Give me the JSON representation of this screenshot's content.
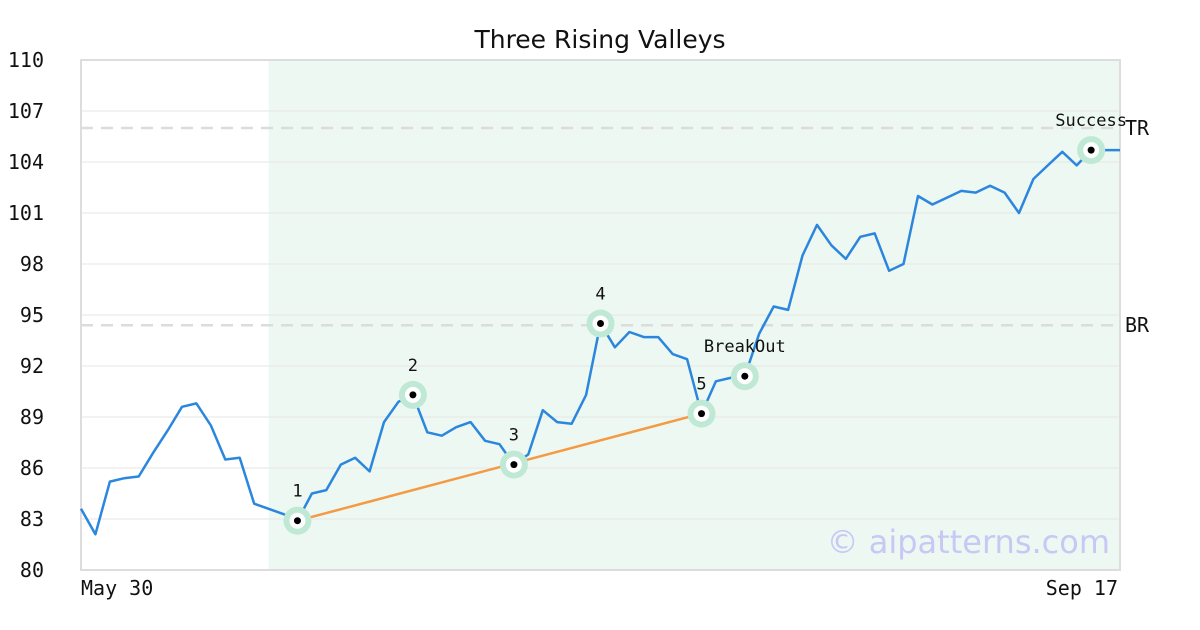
{
  "chart_data": {
    "type": "line",
    "title": "Three Rising Valleys",
    "xlabel": "",
    "ylabel": "",
    "x_tick_labels": [
      "May 30",
      "Sep 17"
    ],
    "ylim": [
      80,
      110
    ],
    "yticks": [
      80,
      83,
      86,
      89,
      92,
      95,
      98,
      101,
      104,
      107,
      110
    ],
    "grid": "horizontal",
    "pattern_window": {
      "start_index": 13,
      "end_index": 72,
      "color": "#eef8f3"
    },
    "levels": [
      {
        "label": "TR",
        "value": 106.0
      },
      {
        "label": "BR",
        "value": 94.4
      }
    ],
    "series": [
      {
        "color": "#2b86dd",
        "values": [
          83.6,
          82.1,
          85.2,
          85.4,
          85.5,
          86.9,
          88.2,
          89.6,
          89.8,
          88.5,
          86.5,
          86.6,
          83.9,
          83.6,
          83.3,
          82.9,
          84.5,
          84.7,
          86.2,
          86.6,
          85.8,
          88.7,
          89.9,
          90.3,
          88.1,
          87.9,
          88.4,
          88.7,
          87.6,
          87.4,
          86.2,
          86.8,
          89.4,
          88.7,
          88.6,
          90.3,
          94.5,
          93.1,
          94.0,
          93.7,
          93.7,
          92.7,
          92.4,
          89.2,
          91.1,
          91.3,
          91.4,
          93.9,
          95.5,
          95.3,
          98.5,
          100.3,
          99.1,
          98.3,
          99.6,
          99.8,
          97.6,
          98.0,
          102.0,
          101.5,
          101.9,
          102.3,
          102.2,
          102.6,
          102.2,
          101.0,
          103.0,
          103.8,
          104.6,
          103.8,
          104.7,
          104.7,
          104.7
        ]
      }
    ],
    "trendline": {
      "color": "#f49a43",
      "from_index": 15,
      "to_index": 43
    },
    "annotations": [
      {
        "index": 15,
        "label": "1"
      },
      {
        "index": 23,
        "label": "2"
      },
      {
        "index": 30,
        "label": "3"
      },
      {
        "index": 36,
        "label": "4"
      },
      {
        "index": 43,
        "label": "5"
      },
      {
        "index": 46,
        "label": "BreakOut"
      },
      {
        "index": 70,
        "label": "Success"
      }
    ],
    "watermark": "© aipatterns.com"
  }
}
